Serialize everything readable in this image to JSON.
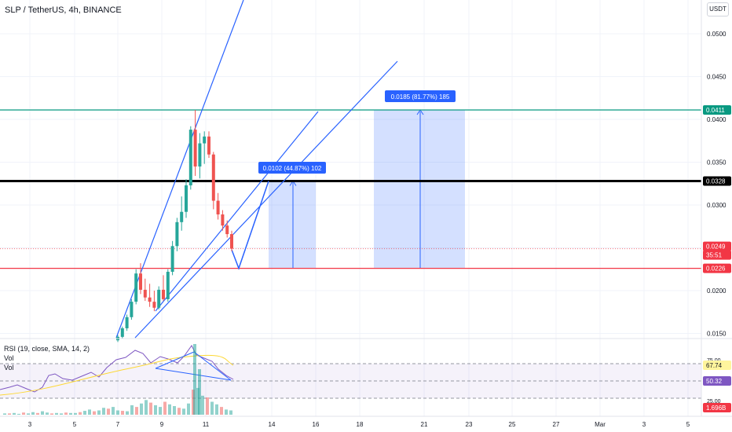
{
  "header": {
    "title": "SLP / TetherUS, 4h, BINANCE",
    "currency": "USDT"
  },
  "price_axis": {
    "ticks": [
      "0.0500",
      "0.0450",
      "0.0400",
      "0.0350",
      "0.0300",
      "0.0200",
      "0.0150"
    ],
    "tags": [
      {
        "text": "0.0411",
        "color": "#089981"
      },
      {
        "text": "0.0328",
        "color": "#000000"
      },
      {
        "text": "0.0249",
        "color": "#f23645"
      },
      {
        "text": "35:51",
        "color": "#f23645"
      },
      {
        "text": "0.0226",
        "color": "#f23645"
      }
    ]
  },
  "rsi_axis": {
    "ticks": [
      "75.00",
      "25.00"
    ],
    "tags": [
      {
        "text": "67.74",
        "color": "#fff59d"
      },
      {
        "text": "50.32",
        "color": "#7e57c2"
      },
      {
        "text": "1.696B",
        "color": "#f23645"
      }
    ]
  },
  "time_axis": {
    "labels": [
      "3",
      "5",
      "7",
      "9",
      "11",
      "14",
      "16",
      "18",
      "21",
      "23",
      "25",
      "27",
      "Mar",
      "3",
      "5"
    ]
  },
  "indicator_legend": {
    "rsi": "RSI (19, close, SMA, 14, 2)",
    "vol1": "Vol",
    "vol2": "Vol"
  },
  "annotations": {
    "measure1": "0.0102 (44.87%) 102",
    "measure2": "0.0185 (81.77%) 185"
  },
  "colors": {
    "up": "#26a69a",
    "down": "#ef5350",
    "line_blue": "#2962ff",
    "rect_fill": "#2962ff",
    "green_level": "#089981",
    "black_level": "#000000",
    "red_level": "#f23645",
    "rsi_line": "#7e57c2",
    "rsi_ma": "#fdd835",
    "rsi_band": "#7e57c2"
  },
  "chart_data": {
    "type": "candlestick",
    "symbol": "SLP / TetherUS",
    "interval": "4h",
    "exchange": "BINANCE",
    "levels": [
      0.0411,
      0.0328,
      0.0226
    ],
    "last_price": 0.0249,
    "candles_ohlc": [
      [
        0.0142,
        0.0148,
        0.014,
        0.0146
      ],
      [
        0.0146,
        0.0158,
        0.0144,
        0.0156
      ],
      [
        0.0156,
        0.0172,
        0.0153,
        0.0169
      ],
      [
        0.0169,
        0.019,
        0.0166,
        0.0187
      ],
      [
        0.0187,
        0.0225,
        0.0184,
        0.022
      ],
      [
        0.022,
        0.0232,
        0.0196,
        0.0201
      ],
      [
        0.0201,
        0.0214,
        0.0188,
        0.0192
      ],
      [
        0.0192,
        0.0208,
        0.0181,
        0.0187
      ],
      [
        0.0187,
        0.02,
        0.0176,
        0.018
      ],
      [
        0.018,
        0.0205,
        0.0178,
        0.0201
      ],
      [
        0.0201,
        0.0218,
        0.0188,
        0.019
      ],
      [
        0.019,
        0.0225,
        0.0187,
        0.0222
      ],
      [
        0.0222,
        0.0258,
        0.0218,
        0.0252
      ],
      [
        0.0252,
        0.0285,
        0.0246,
        0.028
      ],
      [
        0.028,
        0.031,
        0.027,
        0.0292
      ],
      [
        0.0292,
        0.033,
        0.0285,
        0.0323
      ],
      [
        0.0323,
        0.0392,
        0.0318,
        0.0388
      ],
      [
        0.0388,
        0.0411,
        0.0334,
        0.0345
      ],
      [
        0.0345,
        0.0384,
        0.0331,
        0.0372
      ],
      [
        0.0372,
        0.0386,
        0.0348,
        0.038
      ],
      [
        0.038,
        0.0386,
        0.0355,
        0.0359
      ],
      [
        0.0359,
        0.0362,
        0.0295,
        0.0305
      ],
      [
        0.0305,
        0.0314,
        0.0283,
        0.0289
      ],
      [
        0.0289,
        0.0294,
        0.027,
        0.0276
      ],
      [
        0.0276,
        0.0282,
        0.0262,
        0.0266
      ],
      [
        0.0266,
        0.027,
        0.0246,
        0.0249
      ]
    ],
    "measures": [
      {
        "from": 0.0226,
        "to": 0.0328,
        "change": 0.0102,
        "percent": 44.87,
        "ticks": 102
      },
      {
        "from": 0.0226,
        "to": 0.0411,
        "change": 0.0185,
        "percent": 81.77,
        "ticks": 185
      }
    ],
    "rsi": {
      "settings": "RSI (19, close, SMA, 14, 2)",
      "value": 67.74,
      "ma": 50.32,
      "upper": 75,
      "lower": 25
    },
    "volume_last": "1.696B"
  }
}
